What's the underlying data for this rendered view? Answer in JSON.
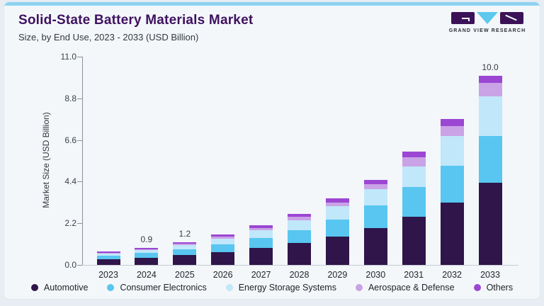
{
  "header": {
    "title": "Solid-State Battery Materials Market",
    "subtitle": "Size, by End Use, 2023 - 2033 (USD Billion)",
    "brand": "GRAND VIEW RESEARCH"
  },
  "chart_data": {
    "type": "bar",
    "stacked": true,
    "title": "Solid-State Battery Materials Market",
    "subtitle": "Size, by End Use, 2023 - 2033 (USD Billion)",
    "xlabel": "",
    "ylabel": "Market Size (USD Billion)",
    "ylim": [
      0,
      11
    ],
    "yticks": [
      "0.0",
      "2.2",
      "4.4",
      "6.6",
      "8.8",
      "11.0"
    ],
    "grid": false,
    "legend_position": "bottom",
    "categories": [
      "2023",
      "2024",
      "2025",
      "2026",
      "2027",
      "2028",
      "2029",
      "2030",
      "2031",
      "2032",
      "2033"
    ],
    "series": [
      {
        "name": "Automotive",
        "color": "#2f1549",
        "values": [
          0.3,
          0.39,
          0.52,
          0.68,
          0.88,
          1.15,
          1.5,
          1.95,
          2.55,
          3.3,
          4.35
        ]
      },
      {
        "name": "Consumer Electronics",
        "color": "#58c6f0",
        "values": [
          0.18,
          0.23,
          0.3,
          0.42,
          0.55,
          0.7,
          0.9,
          1.18,
          1.55,
          1.95,
          2.45
        ]
      },
      {
        "name": "Energy Storage Systems",
        "color": "#c1e7fa",
        "values": [
          0.12,
          0.16,
          0.22,
          0.3,
          0.4,
          0.52,
          0.7,
          0.88,
          1.1,
          1.55,
          2.1
        ]
      },
      {
        "name": "Aerospace & Defense",
        "color": "#caa2e6",
        "values": [
          0.05,
          0.06,
          0.08,
          0.1,
          0.13,
          0.16,
          0.2,
          0.27,
          0.5,
          0.55,
          0.7
        ]
      },
      {
        "name": "Others",
        "color": "#9c46d4",
        "values": [
          0.05,
          0.06,
          0.08,
          0.1,
          0.14,
          0.17,
          0.2,
          0.22,
          0.3,
          0.35,
          0.4
        ]
      }
    ],
    "bar_totals": [
      0.7,
      0.9,
      1.2,
      1.6,
      2.1,
      2.7,
      3.5,
      4.5,
      6.0,
      7.7,
      10.0
    ],
    "bar_total_labels": {
      "2024": "0.9",
      "2025": "1.2",
      "2033": "10.0"
    }
  }
}
